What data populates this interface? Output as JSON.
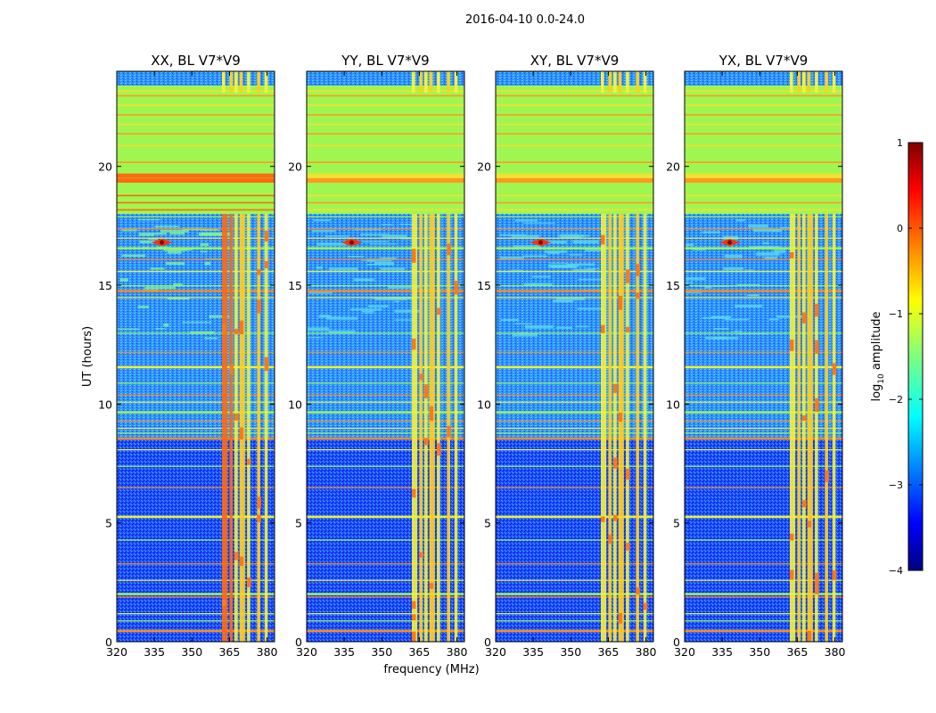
{
  "suptitle": "2016-04-10 0.0-24.0",
  "colors": {
    "background_field": "#a0f650",
    "low_noise": "#1e40ff",
    "colorbar_stops": [
      "#00007f",
      "#0000ff",
      "#007fff",
      "#00ffff",
      "#7fff7f",
      "#ffff00",
      "#ff7f00",
      "#ff0000",
      "#7f0000"
    ]
  },
  "chart_data": [
    {
      "type": "heatmap",
      "title": "XX, BL V7*V9",
      "xlabel": "",
      "ylabel": "UT (hours)",
      "xlim": [
        320,
        383
      ],
      "ylim": [
        0,
        24
      ],
      "xticks": [
        "320",
        "335",
        "350",
        "365",
        "380"
      ],
      "yticks": [
        "0",
        "5",
        "10",
        "15",
        "20"
      ],
      "bright_columns_mhz": [
        362,
        365,
        367,
        369,
        372,
        376,
        379
      ]
    },
    {
      "type": "heatmap",
      "title": "YY, BL V7*V9",
      "xlabel": "frequency (MHz)",
      "ylabel": "",
      "xlim": [
        320,
        383
      ],
      "ylim": [
        0,
        24
      ],
      "xticks": [
        "320",
        "335",
        "350",
        "365",
        "380"
      ],
      "yticks": [
        "0",
        "5",
        "10",
        "15",
        "20"
      ],
      "bright_columns_mhz": [
        362,
        365,
        367,
        369,
        372,
        376,
        379
      ]
    },
    {
      "type": "heatmap",
      "title": "XY, BL V7*V9",
      "xlabel": "",
      "ylabel": "",
      "xlim": [
        320,
        383
      ],
      "ylim": [
        0,
        24
      ],
      "xticks": [
        "320",
        "335",
        "350",
        "365",
        "380"
      ],
      "yticks": [
        "0",
        "5",
        "10",
        "15",
        "20"
      ],
      "bright_columns_mhz": [
        362,
        365,
        367,
        369,
        372,
        376,
        379
      ]
    },
    {
      "type": "heatmap",
      "title": "YX, BL V7*V9",
      "xlabel": "",
      "ylabel": "",
      "xlim": [
        320,
        383
      ],
      "ylim": [
        0,
        24
      ],
      "xticks": [
        "320",
        "335",
        "350",
        "365",
        "380"
      ],
      "yticks": [
        "0",
        "5",
        "10",
        "15",
        "20"
      ],
      "bright_columns_mhz": [
        362,
        365,
        367,
        369,
        372,
        376,
        379
      ]
    }
  ],
  "colorbar": {
    "label": "log",
    "label_sub": "10",
    "label_suffix": " amplitude",
    "range": [
      -4,
      1
    ],
    "ticks": [
      "1",
      "0",
      "−1",
      "−2",
      "−3",
      "−4"
    ]
  }
}
